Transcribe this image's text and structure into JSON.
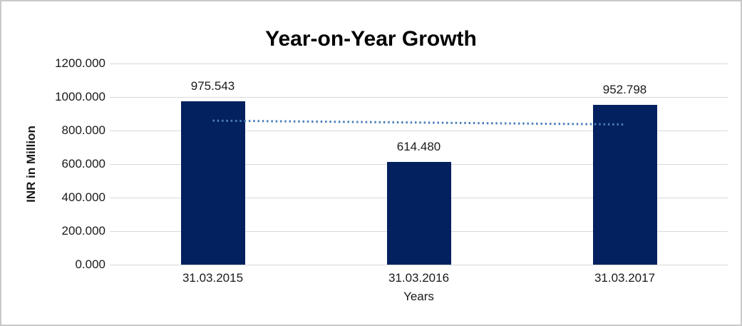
{
  "chart_data": {
    "type": "bar",
    "title": "Year-on-Year Growth",
    "categories": [
      "31.03.2015",
      "31.03.2016",
      "31.03.2017"
    ],
    "values": [
      975.543,
      614.48,
      952.798
    ],
    "value_labels": [
      "975.543",
      "614.480",
      "952.798"
    ],
    "xlabel": "Years",
    "ylabel": "INR in Million",
    "ylim": [
      0,
      1200
    ],
    "ytick_step": 200,
    "ytick_labels": [
      "0.000",
      "200.000",
      "400.000",
      "600.000",
      "800.000",
      "1000.000",
      "1200.000"
    ],
    "grid": "horizontal",
    "legend": "none",
    "trendline": {
      "type": "linear",
      "style": "dotted"
    }
  },
  "colors": {
    "bar": "#02215E",
    "trendline": "#4A7EBB",
    "gridline": "#D9D9D9",
    "frame_border": "#C9C9C9",
    "text": "#1A1A1A",
    "title_text": "#000000",
    "background": "#FFFFFF"
  }
}
